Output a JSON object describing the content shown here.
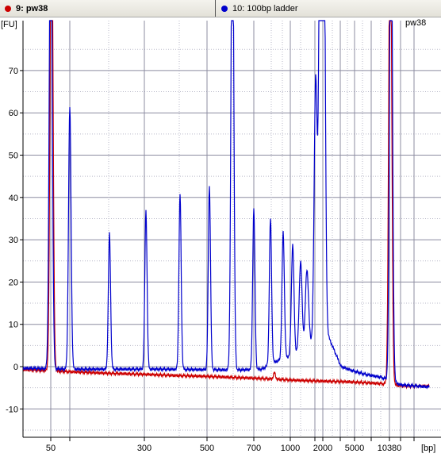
{
  "tabs": [
    {
      "label": "9: pw38",
      "color": "#cc0000"
    },
    {
      "label": "10: 100bp ladder",
      "color": "#0000cc"
    }
  ],
  "chart_data": {
    "type": "line",
    "title": "",
    "sample_label": "pw38",
    "ylabel": "[FU]",
    "xlabel": "[bp]",
    "ylim": [
      -17,
      80
    ],
    "y_ticks": [
      -10,
      0,
      10,
      20,
      30,
      40,
      50,
      60,
      70
    ],
    "x_tick_labels": [
      "50",
      "300",
      "500",
      "700",
      "1000",
      "2000",
      "5000",
      "10380"
    ],
    "grid": true,
    "series": [
      {
        "name": "9: pw38",
        "color": "#cc0000",
        "baseline": [
          [
            0,
            -0.4
          ],
          [
            40,
            -0.8
          ],
          [
            60,
            -1.0
          ],
          [
            100,
            -1.3
          ],
          [
            140,
            -1.6
          ],
          [
            180,
            -1.8
          ],
          [
            220,
            -2.1
          ],
          [
            260,
            -2.3
          ],
          [
            300,
            -2.6
          ],
          [
            330,
            -2.8
          ],
          [
            370,
            -3.2
          ],
          [
            400,
            -3.4
          ],
          [
            440,
            -3.6
          ],
          [
            480,
            -4.0
          ],
          [
            510,
            -4.6
          ]
        ],
        "peaks": [
          [
            65.0,
            120,
            1.8
          ],
          [
            346.0,
            1.5,
            1.3
          ],
          [
            492.0,
            120,
            1.8
          ]
        ]
      },
      {
        "name": "10: 100bp ladder",
        "color": "#0000cc",
        "baseline": [
          [
            0,
            -0.4
          ],
          [
            40,
            -0.4
          ],
          [
            60,
            -0.5
          ],
          [
            100,
            -0.6
          ],
          [
            200,
            -0.6
          ],
          [
            300,
            -0.8
          ],
          [
            330,
            -0.6
          ],
          [
            345,
            1.0
          ],
          [
            360,
            2.0
          ],
          [
            380,
            4.0
          ],
          [
            400,
            6.5
          ],
          [
            412,
            8.0
          ],
          [
            420,
            4.5
          ],
          [
            430,
            0.0
          ],
          [
            445,
            -1.0
          ],
          [
            460,
            -1.8
          ],
          [
            480,
            -2.5
          ],
          [
            495,
            -3.5
          ],
          [
            505,
            -4.3
          ],
          [
            540,
            -4.8
          ]
        ],
        "peaks": [
          [
            64.0,
            120,
            1.8
          ],
          [
            88.0,
            62,
            1.6
          ],
          [
            138.0,
            32,
            1.4
          ],
          [
            184.0,
            37.5,
            1.4
          ],
          [
            227.0,
            41.5,
            1.4
          ],
          [
            264.0,
            43.5,
            1.4
          ],
          [
            293.0,
            120,
            1.7
          ],
          [
            320.0,
            38,
            1.4
          ],
          [
            341.0,
            34.5,
            1.4
          ],
          [
            357.0,
            30,
            1.5
          ],
          [
            369.0,
            26,
            1.6
          ],
          [
            379.0,
            21,
            1.8
          ],
          [
            387.0,
            18,
            2.0
          ],
          [
            398.0,
            62,
            1.9
          ],
          [
            404.0,
            120,
            1.9
          ],
          [
            408.0,
            120,
            1.9
          ],
          [
            493.0,
            120,
            1.8
          ]
        ]
      }
    ]
  }
}
